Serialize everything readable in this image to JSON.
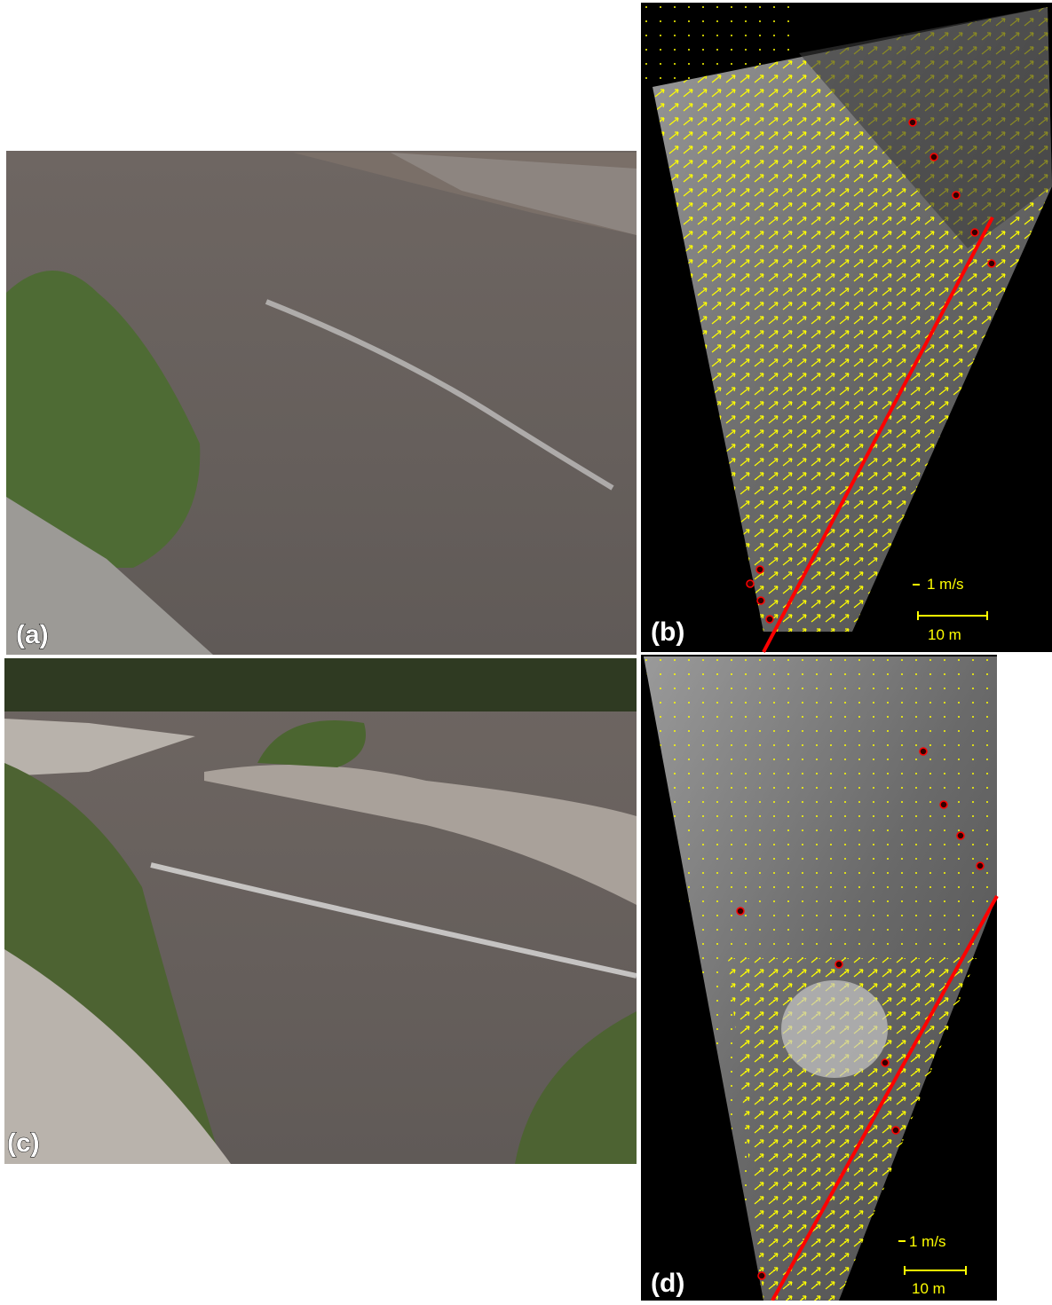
{
  "panels": [
    {
      "label": "(a)"
    },
    {
      "label": "(b)",
      "velocity_scale": "1 m/s",
      "distance_scale": "10 m"
    },
    {
      "label": "(c)"
    },
    {
      "label": "(d)",
      "velocity_scale": "1 m/s",
      "distance_scale": "10 m"
    }
  ]
}
